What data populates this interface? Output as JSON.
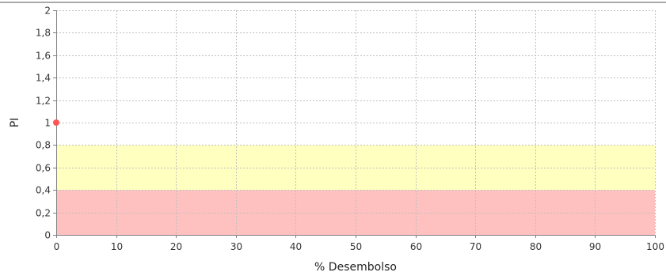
{
  "chart_data": {
    "type": "scatter",
    "title": "",
    "xlabel": "% Desembolso",
    "ylabel": "PI",
    "xlim": [
      0,
      100
    ],
    "ylim": [
      0,
      2
    ],
    "x_ticks": [
      0,
      10,
      20,
      30,
      40,
      50,
      60,
      70,
      80,
      90,
      100
    ],
    "y_ticks": [
      0,
      0.2,
      0.4,
      0.6,
      0.8,
      1,
      1.2,
      1.4,
      1.6,
      1.8,
      2
    ],
    "y_tick_labels": [
      "0",
      "0,2",
      "0,4",
      "0,6",
      "0,8",
      "1",
      "1,2",
      "1,4",
      "1,6",
      "1,8",
      "2"
    ],
    "x_tick_labels": [
      "0",
      "10",
      "20",
      "30",
      "40",
      "50",
      "60",
      "70",
      "80",
      "90",
      "100"
    ],
    "grid": true,
    "bands": [
      {
        "from": 0,
        "to": 0.4,
        "color": "#ffc0c0"
      },
      {
        "from": 0.4,
        "to": 0.8,
        "color": "#ffffc0"
      }
    ],
    "series": [
      {
        "color": "#ff5555",
        "points": [
          {
            "x": 0,
            "y": 1
          }
        ]
      }
    ],
    "colors": {
      "plot_background": "#ffffff",
      "grid": "#c0c0c0",
      "axis": "#808080",
      "top_rule": "#555555"
    }
  }
}
